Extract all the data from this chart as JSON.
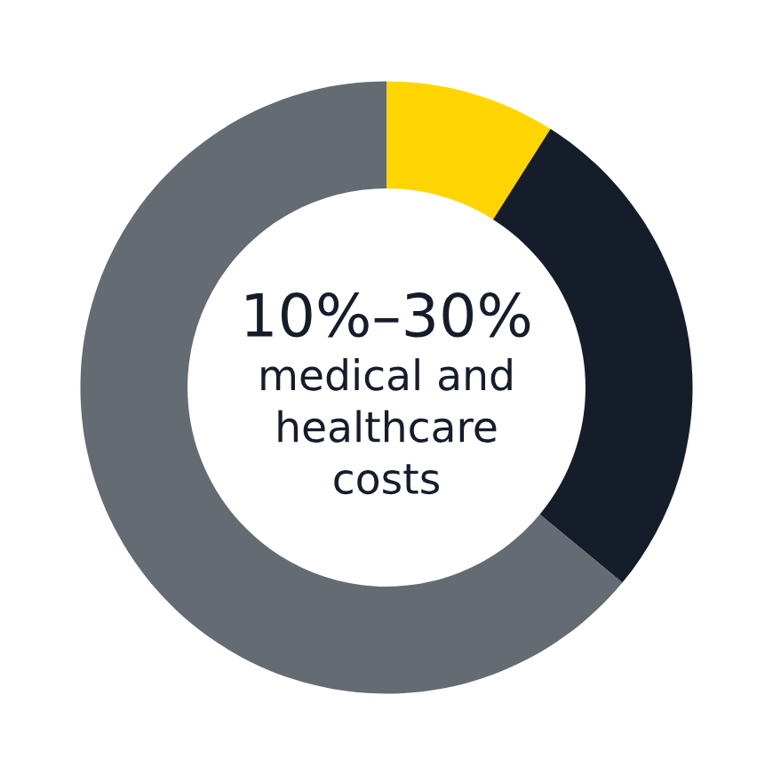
{
  "chart_data": {
    "type": "donut",
    "categories": [
      null,
      null,
      null
    ],
    "values": [
      9,
      27,
      64
    ],
    "colors": [
      "#ffd500",
      "#161d2a",
      "#646b73"
    ],
    "annotations": [
      "10%–30%",
      "medical and\nhealthcare\ncosts"
    ]
  }
}
